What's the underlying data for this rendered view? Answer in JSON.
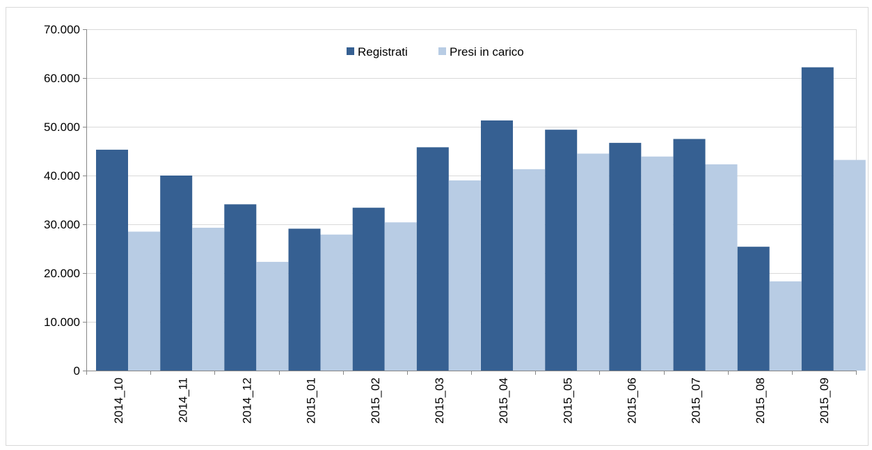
{
  "chart_data": {
    "type": "bar",
    "categories": [
      "2014_10",
      "2014_11",
      "2014_12",
      "2015_01",
      "2015_02",
      "2015_03",
      "2015_04",
      "2015_05",
      "2015_06",
      "2015_07",
      "2015_08",
      "2015_09"
    ],
    "series": [
      {
        "name": "Registrati",
        "color": "#366092",
        "values": [
          45300,
          40000,
          34100,
          29100,
          33400,
          45800,
          51300,
          49400,
          46700,
          47500,
          25400,
          62200
        ]
      },
      {
        "name": "Presi in carico",
        "color": "#b8cce4",
        "values": [
          28500,
          29300,
          22300,
          27900,
          30400,
          39000,
          41300,
          44500,
          43900,
          42300,
          18300,
          43200
        ]
      }
    ],
    "title": "",
    "xlabel": "",
    "ylabel": "",
    "ylim": [
      0,
      70000
    ],
    "yticks": [
      0,
      10000,
      20000,
      30000,
      40000,
      50000,
      60000,
      70000
    ],
    "ytick_labels": [
      "0",
      "10.000",
      "20.000",
      "30.000",
      "40.000",
      "50.000",
      "60.000",
      "70.000"
    ],
    "grid": true,
    "legend_position": "top-center"
  }
}
